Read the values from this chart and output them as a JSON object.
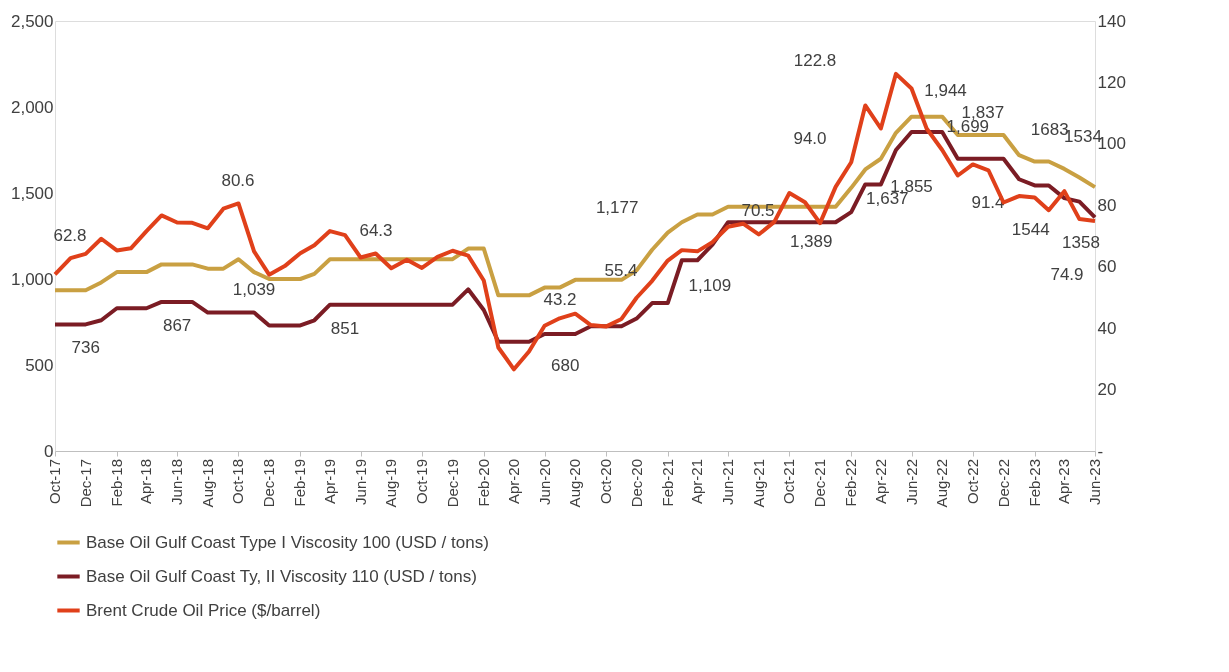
{
  "chart_data": {
    "type": "line",
    "x": [
      "2017-10",
      "2017-11",
      "2017-12",
      "2018-01",
      "2018-02",
      "2018-03",
      "2018-04",
      "2018-05",
      "2018-06",
      "2018-07",
      "2018-08",
      "2018-09",
      "2018-10",
      "2018-11",
      "2018-12",
      "2019-01",
      "2019-02",
      "2019-03",
      "2019-04",
      "2019-05",
      "2019-06",
      "2019-07",
      "2019-08",
      "2019-09",
      "2019-10",
      "2019-11",
      "2019-12",
      "2020-01",
      "2020-02",
      "2020-03",
      "2020-04",
      "2020-05",
      "2020-06",
      "2020-07",
      "2020-08",
      "2020-09",
      "2020-10",
      "2020-11",
      "2020-12",
      "2021-01",
      "2021-02",
      "2021-03",
      "2021-04",
      "2021-05",
      "2021-06",
      "2021-07",
      "2021-08",
      "2021-09",
      "2021-10",
      "2021-11",
      "2021-12",
      "2022-01",
      "2022-02",
      "2022-03",
      "2022-04",
      "2022-05",
      "2022-06",
      "2022-07",
      "2022-08",
      "2022-09",
      "2022-10",
      "2022-11",
      "2022-12",
      "2023-01",
      "2023-02",
      "2023-03",
      "2023-04",
      "2023-05",
      "2023-06"
    ],
    "series": [
      {
        "name": "Base Oil Gulf Coast Type I Viscosity 100 (USD / tons)",
        "color": "#c9a042",
        "values": [
          935,
          935,
          935,
          980,
          1040,
          1040,
          1040,
          1085,
          1085,
          1085,
          1060,
          1060,
          1115,
          1040,
          1000,
          1000,
          1000,
          1030,
          1115,
          1115,
          1115,
          1115,
          1115,
          1115,
          1115,
          1115,
          1115,
          1177,
          1177,
          905,
          905,
          905,
          950,
          950,
          995,
          995,
          995,
          995,
          1050,
          1170,
          1270,
          1330,
          1375,
          1375,
          1420,
          1420,
          1420,
          1420,
          1420,
          1420,
          1420,
          1420,
          1530,
          1637,
          1699,
          1850,
          1944,
          1944,
          1944,
          1837,
          1837,
          1837,
          1837,
          1720,
          1683,
          1683,
          1640,
          1590,
          1534
        ]
      },
      {
        "name": "Base Oil Gulf Coast Ty, II Viscosity 110 (USD / tons)",
        "color": "#7b1c24",
        "values": [
          736,
          736,
          736,
          760,
          830,
          830,
          830,
          867,
          867,
          867,
          805,
          805,
          805,
          805,
          730,
          730,
          730,
          760,
          851,
          851,
          851,
          851,
          851,
          851,
          851,
          851,
          851,
          940,
          820,
          635,
          635,
          635,
          680,
          680,
          680,
          725,
          725,
          725,
          770,
          860,
          860,
          1109,
          1109,
          1200,
          1330,
          1330,
          1330,
          1330,
          1330,
          1330,
          1330,
          1330,
          1389,
          1550,
          1550,
          1750,
          1855,
          1855,
          1855,
          1699,
          1699,
          1699,
          1699,
          1580,
          1544,
          1544,
          1470,
          1450,
          1358
        ]
      },
      {
        "name": "Brent Crude Oil Price ($/barrel)",
        "color": "#e0401a",
        "axis": "y2",
        "values": [
          57.5,
          62.8,
          64.2,
          69.1,
          65.3,
          66.0,
          71.6,
          76.7,
          74.4,
          74.3,
          72.5,
          78.9,
          80.6,
          65.0,
          57.4,
          60.2,
          64.4,
          67.0,
          71.6,
          70.3,
          63.0,
          64.3,
          59.5,
          62.3,
          59.6,
          63.2,
          65.2,
          63.6,
          55.5,
          33.7,
          26.6,
          32.4,
          40.8,
          43.2,
          44.7,
          41.0,
          40.5,
          43.0,
          49.9,
          55.4,
          62.0,
          65.4,
          65.0,
          68.0,
          73.0,
          74.0,
          70.5,
          74.6,
          84.0,
          81.0,
          74.2,
          86.0,
          94.0,
          112.5,
          105.0,
          122.8,
          118.0,
          105.0,
          98.0,
          89.7,
          93.3,
          91.4,
          80.9,
          83.0,
          82.5,
          78.4,
          84.6,
          75.5,
          74.9
        ]
      }
    ],
    "xlim": [
      "2017-10",
      "2023-06"
    ],
    "xticks": [
      {
        "value": "2017-10",
        "label": "Oct-17"
      },
      {
        "value": "2017-12",
        "label": "Dec-17"
      },
      {
        "value": "2018-02",
        "label": "Feb-18"
      },
      {
        "value": "2018-04",
        "label": "Apr-18"
      },
      {
        "value": "2018-06",
        "label": "Jun-18"
      },
      {
        "value": "2018-08",
        "label": "Aug-18"
      },
      {
        "value": "2018-10",
        "label": "Oct-18"
      },
      {
        "value": "2018-12",
        "label": "Dec-18"
      },
      {
        "value": "2019-02",
        "label": "Feb-19"
      },
      {
        "value": "2019-04",
        "label": "Apr-19"
      },
      {
        "value": "2019-06",
        "label": "Jun-19"
      },
      {
        "value": "2019-08",
        "label": "Aug-19"
      },
      {
        "value": "2019-10",
        "label": "Oct-19"
      },
      {
        "value": "2019-12",
        "label": "Dec-19"
      },
      {
        "value": "2020-02",
        "label": "Feb-20"
      },
      {
        "value": "2020-04",
        "label": "Apr-20"
      },
      {
        "value": "2020-06",
        "label": "Jun-20"
      },
      {
        "value": "2020-08",
        "label": "Aug-20"
      },
      {
        "value": "2020-10",
        "label": "Oct-20"
      },
      {
        "value": "2020-12",
        "label": "Dec-20"
      },
      {
        "value": "2021-02",
        "label": "Feb-21"
      },
      {
        "value": "2021-04",
        "label": "Apr-21"
      },
      {
        "value": "2021-06",
        "label": "Jun-21"
      },
      {
        "value": "2021-08",
        "label": "Aug-21"
      },
      {
        "value": "2021-10",
        "label": "Oct-21"
      },
      {
        "value": "2021-12",
        "label": "Dec-21"
      },
      {
        "value": "2022-02",
        "label": "Feb-22"
      },
      {
        "value": "2022-04",
        "label": "Apr-22"
      },
      {
        "value": "2022-06",
        "label": "Jun-22"
      },
      {
        "value": "2022-08",
        "label": "Aug-22"
      },
      {
        "value": "2022-10",
        "label": "Oct-22"
      },
      {
        "value": "2022-12",
        "label": "Dec-22"
      },
      {
        "value": "2023-02",
        "label": "Feb-23"
      },
      {
        "value": "2023-04",
        "label": "Apr-23"
      },
      {
        "value": "2023-06",
        "label": "Jun-23"
      }
    ],
    "ylim": [
      0,
      2500
    ],
    "yticks": [
      {
        "value": 0,
        "label": "0"
      },
      {
        "value": 500,
        "label": "500"
      },
      {
        "value": 1000,
        "label": "1,000"
      },
      {
        "value": 1500,
        "label": "1,500"
      },
      {
        "value": 2000,
        "label": "2,000"
      },
      {
        "value": 2500,
        "label": "2,500"
      }
    ],
    "y2lim": [
      0,
      140
    ],
    "y2ticks": [
      {
        "value": 0,
        "label": "-"
      },
      20,
      40,
      60,
      80,
      100,
      120,
      140
    ],
    "legend": "bottom",
    "grid": false,
    "line_style": "solid",
    "annotations": [
      "62.8",
      {
        "text": "736",
        "x": "2017-12",
        "y": 736
      },
      {
        "text": "867",
        "x": "2018-06",
        "y": 867
      },
      {
        "text": "1,039",
        "x": "2018-11",
        "y": 1040
      },
      "80.6",
      {
        "text": "851",
        "x": "2019-05",
        "y": 851
      },
      "64.3",
      {
        "text": "680",
        "x": "2020-08",
        "y": 680
      },
      "43.2",
      "55.4",
      {
        "text": "1,109",
        "x": "2021-03",
        "y": 1109
      },
      {
        "text": "1,177",
        "x": "2021-01",
        "y": 1170
      },
      "70.5",
      "94.0",
      {
        "text": "1,389",
        "x": "2022-02",
        "y": 1389
      },
      {
        "text": "1,637",
        "x": "2022-03",
        "y": 1637
      },
      "122.8",
      {
        "text": "1,944",
        "x": "2022-06",
        "y": 1944
      },
      {
        "text": "1,855",
        "x": "2022-06",
        "y": 1855
      },
      {
        "text": "1,837",
        "x": "2022-10",
        "y": 1837
      },
      {
        "text": "1,699",
        "x": "2022-09",
        "y": 1699
      },
      "91.4",
      {
        "text": "1683",
        "x": "2023-02",
        "y": 1683
      },
      {
        "text": "1534",
        "x": "2023-06",
        "y": 1534
      },
      {
        "text": "1358",
        "x": "2023-06",
        "y": 1358
      },
      {
        "text": "1544",
        "x": "2023-03",
        "y": 1544
      },
      "74.9"
    ]
  }
}
